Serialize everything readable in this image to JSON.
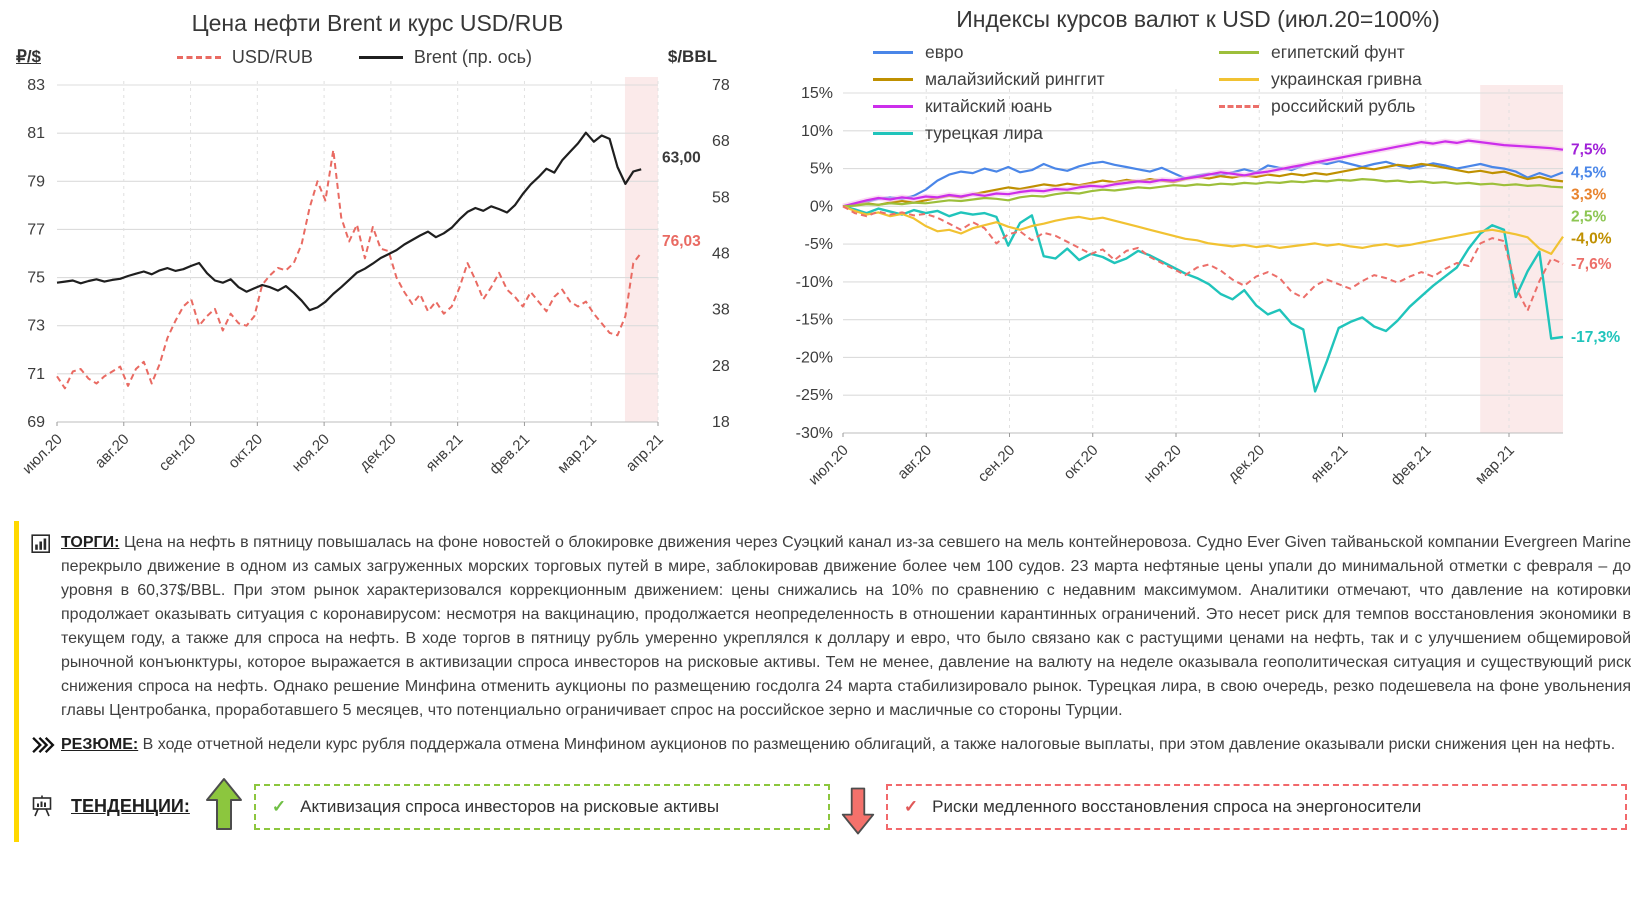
{
  "colors": {
    "highlight_band": "#FBEAEA",
    "accent_bar": "#FFD800",
    "trend_up": "#8CC63E",
    "trend_down": "#F2686B",
    "check_up": "#6FBF44",
    "check_down": "#E05858"
  },
  "chart_data": [
    {
      "id": "brent_usdrub",
      "type": "line",
      "title": "Цена нефти Brent и курс USD/RUB",
      "y_left": {
        "label": "₽/$",
        "min": 69,
        "max": 83,
        "tick_values": [
          83,
          81,
          79,
          77,
          75,
          73,
          71,
          69
        ],
        "tick_labels": [
          "83",
          "81",
          "79",
          "77",
          "75",
          "73",
          "71",
          "69"
        ]
      },
      "y_right": {
        "label": "$/BBL",
        "min": 18,
        "max": 78,
        "tick_values": [
          78,
          68,
          58,
          48,
          38,
          28,
          18
        ],
        "tick_labels": [
          "78",
          "68",
          "58",
          "48",
          "38",
          "28",
          "18"
        ]
      },
      "x_ticks": [
        "июл.20",
        "авг.20",
        "сен.20",
        "окт.20",
        "ноя.20",
        "дек.20",
        "янв.21",
        "фев.21",
        "мар.21",
        "апр.21"
      ],
      "grid": true,
      "highlight_band": [
        0.945,
        1.0
      ],
      "highlight_color": "#FBEAEA",
      "series": [
        {
          "name": "USD/RUB",
          "axis": "left",
          "color": "#E96A62",
          "dash": "6,4",
          "width": 2,
          "end_label": {
            "text": "76,03",
            "color": "#E96A62",
            "dy": -12
          },
          "values": [
            70.9,
            70.4,
            71.1,
            71.2,
            70.8,
            70.6,
            70.9,
            71.1,
            71.3,
            70.5,
            71.2,
            71.5,
            70.6,
            71.4,
            72.5,
            73.2,
            73.8,
            74.1,
            73.0,
            73.4,
            73.7,
            72.8,
            73.5,
            73.1,
            73.0,
            73.4,
            74.7,
            75.1,
            75.4,
            75.3,
            75.6,
            76.4,
            77.9,
            79.0,
            78.2,
            80.3,
            77.5,
            76.5,
            77.2,
            75.8,
            77.1,
            76.2,
            76.1,
            75.0,
            74.4,
            73.9,
            74.3,
            73.6,
            74.0,
            73.5,
            73.8,
            74.6,
            75.6,
            74.9,
            74.1,
            74.6,
            75.2,
            74.5,
            74.2,
            73.8,
            74.4,
            74.0,
            73.6,
            74.2,
            74.5,
            74.0,
            73.8,
            74.0,
            73.5,
            73.1,
            72.7,
            72.6,
            73.4,
            75.6,
            76.03
          ]
        },
        {
          "name": "Brent (пр. ось)",
          "axis": "right",
          "color": "#1f1f1f",
          "dash": null,
          "width": 2.2,
          "end_label": {
            "text": "63,00",
            "color": "#3a3a3a",
            "dy": -12
          },
          "values": [
            42.8,
            43.0,
            43.2,
            42.7,
            43.1,
            43.4,
            43.0,
            43.3,
            43.5,
            44.0,
            44.4,
            44.8,
            44.3,
            45.0,
            45.4,
            44.9,
            45.2,
            45.8,
            46.3,
            44.5,
            43.2,
            42.8,
            43.4,
            42.0,
            41.2,
            41.8,
            42.4,
            42.0,
            41.4,
            42.2,
            41.0,
            39.6,
            37.9,
            38.4,
            39.4,
            40.8,
            42.0,
            43.3,
            44.6,
            45.3,
            46.2,
            47.2,
            47.9,
            48.6,
            49.6,
            50.4,
            51.2,
            51.9,
            50.9,
            51.6,
            52.6,
            54.1,
            55.4,
            56.1,
            55.6,
            56.4,
            55.9,
            55.3,
            56.6,
            58.6,
            60.3,
            61.6,
            63.1,
            62.4,
            64.6,
            66.1,
            67.6,
            69.5,
            67.9,
            69.0,
            68.4,
            63.4,
            60.4,
            62.6,
            63.0
          ]
        }
      ]
    },
    {
      "id": "fx_indices",
      "type": "line",
      "title": "Индексы курсов валют к USD (июл.20=100%)",
      "y": {
        "min": -30,
        "max": 15,
        "tick_values": [
          15,
          10,
          5,
          0,
          -5,
          -10,
          -15,
          -20,
          -25,
          -30
        ],
        "tick_labels": [
          "15%",
          "10%",
          "5%",
          "0%",
          "-5%",
          "-10%",
          "-15%",
          "-20%",
          "-25%",
          "-30%"
        ]
      },
      "x_ticks": [
        "июл.20",
        "авг.20",
        "сен.20",
        "окт.20",
        "ноя.20",
        "дек.20",
        "янв.21",
        "фев.21",
        "мар.21"
      ],
      "grid": true,
      "highlight_band": [
        0.885,
        1.0
      ],
      "highlight_color": "#FBEAEA",
      "series": [
        {
          "name": "евро",
          "color": "#4A86E8",
          "width": 2.2,
          "end_label": {
            "text": "4,5%",
            "color": "#4A86E8"
          },
          "values": [
            0,
            0.3,
            0.6,
            1.0,
            1.2,
            1.0,
            1.4,
            2.2,
            3.4,
            4.2,
            4.6,
            4.4,
            5.0,
            4.6,
            5.2,
            4.5,
            4.8,
            5.6,
            5.0,
            4.7,
            5.3,
            5.7,
            5.9,
            5.5,
            5.2,
            4.9,
            4.6,
            5.1,
            4.4,
            3.7,
            4.1,
            4.3,
            4.1,
            4.5,
            4.9,
            4.5,
            5.4,
            5.1,
            4.8,
            5.4,
            5.9,
            5.6,
            6.0,
            5.6,
            5.2,
            5.6,
            5.9,
            5.4,
            5.0,
            5.3,
            5.7,
            5.4,
            5.0,
            5.3,
            5.6,
            5.2,
            5.0,
            4.6,
            3.8,
            4.4,
            3.9,
            4.5
          ]
        },
        {
          "name": "малайзийский ринггит",
          "color": "#BF9000",
          "width": 2.2,
          "end_label": {
            "text": "3,3%",
            "color": "#E8832D"
          },
          "values": [
            0,
            0.2,
            0.4,
            0.2,
            0.5,
            0.7,
            0.5,
            0.8,
            1.1,
            1.4,
            1.2,
            1.6,
            1.9,
            2.2,
            2.5,
            2.3,
            2.6,
            2.9,
            2.7,
            3.0,
            2.8,
            3.1,
            3.4,
            3.2,
            3.5,
            3.3,
            3.6,
            3.4,
            3.2,
            3.6,
            3.9,
            3.7,
            4.0,
            3.8,
            4.1,
            3.9,
            4.2,
            4.0,
            4.3,
            4.1,
            4.4,
            4.2,
            4.5,
            4.8,
            5.1,
            4.9,
            5.2,
            5.5,
            5.3,
            5.6,
            5.4,
            5.1,
            4.8,
            4.5,
            4.7,
            4.4,
            4.6,
            4.1,
            3.6,
            3.9,
            3.5,
            3.3
          ]
        },
        {
          "name": "китайский юань",
          "color": "#CC2EEB",
          "width": 2.2,
          "halo": "#F5BDE8",
          "end_label": {
            "text": "7,5%",
            "color": "#A020D8"
          },
          "values": [
            0,
            0.4,
            0.8,
            1.1,
            0.9,
            1.2,
            1.0,
            1.3,
            1.2,
            1.5,
            1.3,
            1.6,
            1.4,
            1.7,
            1.6,
            1.9,
            2.1,
            2.0,
            2.3,
            2.2,
            2.5,
            2.7,
            2.6,
            2.9,
            3.1,
            3.3,
            3.2,
            3.5,
            3.4,
            3.7,
            3.9,
            4.2,
            4.5,
            4.3,
            4.1,
            4.4,
            4.6,
            4.9,
            5.2,
            5.5,
            5.8,
            6.1,
            6.4,
            6.7,
            7.0,
            7.3,
            7.6,
            7.9,
            8.2,
            8.5,
            8.3,
            8.6,
            8.4,
            8.7,
            8.5,
            8.3,
            8.1,
            8.0,
            7.9,
            7.8,
            7.7,
            7.5
          ]
        },
        {
          "name": "турецкая лира",
          "color": "#20C4BB",
          "width": 2.4,
          "end_label": {
            "text": "-17,3%",
            "color": "#20C4BB"
          },
          "values": [
            0,
            -0.4,
            -0.9,
            -0.3,
            -0.7,
            -1.1,
            -0.5,
            -0.9,
            -0.6,
            -1.3,
            -0.8,
            -1.1,
            -0.9,
            -1.4,
            -5.2,
            -2.2,
            -1.2,
            -6.6,
            -6.9,
            -5.6,
            -7.1,
            -6.3,
            -6.7,
            -7.5,
            -6.9,
            -5.9,
            -6.5,
            -7.3,
            -8.1,
            -8.9,
            -9.5,
            -10.3,
            -11.6,
            -12.3,
            -11.1,
            -13.1,
            -14.3,
            -13.7,
            -15.5,
            -16.3,
            -24.5,
            -20.5,
            -16.1,
            -15.3,
            -14.7,
            -15.9,
            -16.5,
            -15.1,
            -13.3,
            -11.9,
            -10.5,
            -9.3,
            -8.1,
            -5.6,
            -3.6,
            -2.5,
            -3.1,
            -12.0,
            -8.6,
            -6.0,
            -17.5,
            -17.3
          ]
        },
        {
          "name": "египетский фунт",
          "color": "#9DBF3B",
          "width": 2.2,
          "end_label": {
            "text": "2,5%",
            "color": "#8DC653"
          },
          "values": [
            0,
            0.1,
            0.3,
            0.2,
            0.4,
            0.3,
            0.5,
            0.4,
            0.6,
            0.8,
            0.7,
            0.9,
            1.1,
            1.0,
            0.8,
            1.2,
            1.4,
            1.3,
            1.6,
            1.8,
            1.7,
            2.0,
            2.2,
            2.1,
            2.3,
            2.5,
            2.4,
            2.6,
            2.8,
            2.7,
            2.9,
            2.8,
            3.0,
            2.9,
            3.1,
            3.0,
            3.2,
            3.1,
            3.3,
            3.2,
            3.4,
            3.3,
            3.5,
            3.4,
            3.6,
            3.5,
            3.3,
            3.4,
            3.2,
            3.3,
            3.1,
            3.2,
            3.0,
            3.1,
            2.9,
            3.0,
            2.8,
            2.9,
            2.7,
            2.8,
            2.6,
            2.5
          ]
        },
        {
          "name": "украинская гривна",
          "color": "#F1C232",
          "width": 2.2,
          "end_label": {
            "text": "-4,0%",
            "color": "#BF9000"
          },
          "values": [
            0,
            -0.6,
            -1.1,
            -0.8,
            -1.3,
            -1.0,
            -1.6,
            -2.6,
            -3.3,
            -3.1,
            -3.6,
            -2.9,
            -2.5,
            -2.1,
            -2.7,
            -3.1,
            -2.6,
            -2.3,
            -1.9,
            -1.6,
            -1.4,
            -1.7,
            -1.5,
            -1.9,
            -2.3,
            -2.7,
            -3.1,
            -3.5,
            -3.9,
            -4.3,
            -4.5,
            -4.9,
            -5.1,
            -5.3,
            -5.1,
            -5.4,
            -5.2,
            -5.5,
            -5.3,
            -5.1,
            -4.9,
            -5.2,
            -5.0,
            -5.3,
            -5.5,
            -5.2,
            -5.0,
            -5.3,
            -5.1,
            -4.8,
            -4.5,
            -4.2,
            -3.9,
            -3.6,
            -3.3,
            -3.1,
            -3.4,
            -3.7,
            -4.1,
            -5.6,
            -6.3,
            -4.0
          ]
        },
        {
          "name": "российский рубль",
          "color": "#EC6F6A",
          "width": 2,
          "dash": "6,4",
          "end_label": {
            "text": "-7,6%",
            "color": "#EC6F6A"
          },
          "values": [
            0,
            -0.9,
            -1.3,
            -0.7,
            -1.1,
            -0.8,
            -1.2,
            -1.0,
            -1.5,
            -2.3,
            -3.1,
            -2.1,
            -2.9,
            -4.9,
            -3.7,
            -3.3,
            -4.5,
            -3.5,
            -3.9,
            -4.7,
            -5.5,
            -6.3,
            -5.7,
            -7.1,
            -5.9,
            -5.5,
            -6.7,
            -7.5,
            -8.3,
            -9.1,
            -8.1,
            -7.7,
            -8.5,
            -9.7,
            -10.5,
            -9.3,
            -8.7,
            -9.5,
            -11.3,
            -12.1,
            -10.5,
            -9.7,
            -10.3,
            -10.9,
            -9.9,
            -9.1,
            -9.5,
            -10.1,
            -9.3,
            -8.7,
            -9.3,
            -8.3,
            -7.5,
            -7.9,
            -4.9,
            -4.2,
            -4.6,
            -10.7,
            -13.8,
            -9.9,
            -6.9,
            -7.6
          ]
        }
      ]
    }
  ],
  "report": {
    "torgi": {
      "label": "ТОРГИ:",
      "text": "Цена на нефть в пятницу повышалась на фоне новостей о блокировке движения через Суэцкий канал из-за севшего на мель контейнеровоза. Судно Ever Given тайваньской компании Evergreen Marine перекрыло движение в одном из самых загруженных морских торговых путей в мире, заблокировав движение более чем 100 судов. 23 марта нефтяные цены упали до минимальной отметки с февраля – до уровня в 60,37$/BBL. При этом рынок характеризовался коррекционным движением: цены снижались на 10% по сравнению с недавним максимумом. Аналитики отмечают, что давление на котировки продолжает оказывать ситуация с коронавирусом: несмотря на вакцинацию, продолжается неопределенность в отношении карантинных ограничений. Это несет риск для темпов восстановления экономики в текущем году, а также для спроса на нефть. В ходе торгов в пятницу рубль умеренно укреплялся к доллару и евро, что было связано как с растущими ценами на нефть, так и с улучшением общемировой рыночной конъюнктуры, которое выражается в активизации спроса инвесторов на рисковые активы. Тем не менее, давление на валюту на неделе оказывала геополитическая ситуация и существующий риск снижения спроса на нефть. Однако решение Минфина отменить аукционы по размещению госдолга 24 марта стабилизировало рынок. Турецкая лира, в свою очередь, резко подешевела на фоне увольнения главы Центробанка, проработавшего 5 месяцев, что потенциально ограничивает спрос на российское зерно и масличные со стороны Турции."
    },
    "rezume": {
      "label": "РЕЗЮМЕ:",
      "text": "В ходе отчетной недели курс рубля поддержала отмена Минфином аукционов по размещению облигаций, а также налоговые выплаты, при этом давление оказывали риски снижения цен на нефть."
    },
    "trends": {
      "label": "ТЕНДЕНЦИИ:",
      "check": "✓",
      "up_text": "Активизация спроса инвесторов на рисковые активы",
      "down_text": "Риски медленного восстановления спроса на энергоносители"
    }
  }
}
